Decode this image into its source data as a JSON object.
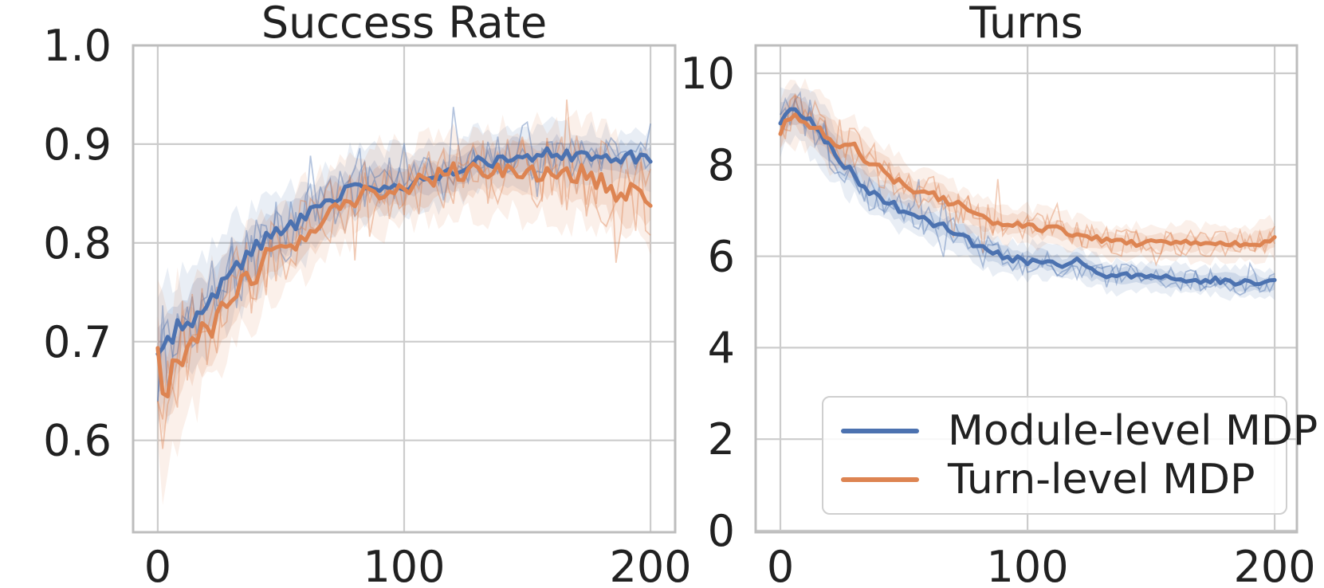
{
  "figure": {
    "background": "#ffffff",
    "text_color": "#212121",
    "grid_color": "#cccccc",
    "spine_color": "#bdbdbd"
  },
  "legend": {
    "position": "lower right of Turns panel",
    "items": [
      {
        "label": "Module-level MDP",
        "color": "#4C72B0"
      },
      {
        "label": "Turn-level MDP",
        "color": "#DD8452"
      }
    ]
  },
  "chart_data": [
    {
      "type": "line",
      "title": "Success Rate",
      "xlabel": "",
      "ylabel": "",
      "grid": true,
      "xlim": [
        -10,
        210
      ],
      "ylim": [
        0.507,
        1.0
      ],
      "xticks": [
        0,
        100,
        200
      ],
      "xtick_labels": [
        "0",
        "100",
        "200"
      ],
      "yticks": [
        0.6,
        0.7,
        0.8,
        0.9,
        1.0
      ],
      "ytick_labels": [
        "0.6",
        "0.7",
        "0.8",
        "0.9",
        "1.0"
      ],
      "x": [
        0,
        2,
        5,
        10,
        15,
        20,
        25,
        30,
        35,
        40,
        45,
        50,
        55,
        60,
        65,
        70,
        75,
        80,
        85,
        90,
        95,
        100,
        105,
        110,
        115,
        120,
        125,
        130,
        135,
        140,
        145,
        150,
        155,
        160,
        165,
        170,
        175,
        180,
        185,
        190,
        195,
        200
      ],
      "series": [
        {
          "name": "Module-level MDP",
          "color": "#4C72B0",
          "values": [
            0.68,
            0.69,
            0.703,
            0.718,
            0.726,
            0.74,
            0.756,
            0.772,
            0.78,
            0.795,
            0.806,
            0.81,
            0.82,
            0.828,
            0.834,
            0.843,
            0.85,
            0.855,
            0.864,
            0.858,
            0.861,
            0.859,
            0.863,
            0.866,
            0.864,
            0.872,
            0.878,
            0.884,
            0.882,
            0.886,
            0.888,
            0.884,
            0.889,
            0.893,
            0.889,
            0.886,
            0.889,
            0.887,
            0.884,
            0.888,
            0.886,
            0.883
          ],
          "band_halfwidth": [
            0.075,
            0.07,
            0.06,
            0.05,
            0.05,
            0.05,
            0.045,
            0.045,
            0.045,
            0.04,
            0.04,
            0.04,
            0.038,
            0.038,
            0.036,
            0.035,
            0.035,
            0.035,
            0.033,
            0.033,
            0.032,
            0.032,
            0.03,
            0.03,
            0.03,
            0.03,
            0.028,
            0.028,
            0.028,
            0.028,
            0.028,
            0.027,
            0.027,
            0.027,
            0.026,
            0.026,
            0.026,
            0.026,
            0.026,
            0.026,
            0.026,
            0.026
          ]
        },
        {
          "name": "Turn-level MDP",
          "color": "#DD8452",
          "values": [
            0.683,
            0.641,
            0.662,
            0.69,
            0.7,
            0.71,
            0.725,
            0.75,
            0.762,
            0.77,
            0.79,
            0.795,
            0.8,
            0.812,
            0.82,
            0.83,
            0.837,
            0.845,
            0.85,
            0.853,
            0.856,
            0.857,
            0.861,
            0.863,
            0.868,
            0.872,
            0.869,
            0.875,
            0.872,
            0.875,
            0.876,
            0.873,
            0.87,
            0.874,
            0.868,
            0.871,
            0.866,
            0.863,
            0.853,
            0.849,
            0.853,
            0.846
          ],
          "band_halfwidth": [
            0.09,
            0.085,
            0.075,
            0.065,
            0.06,
            0.058,
            0.055,
            0.052,
            0.05,
            0.048,
            0.046,
            0.045,
            0.044,
            0.043,
            0.042,
            0.042,
            0.04,
            0.04,
            0.04,
            0.04,
            0.04,
            0.04,
            0.04,
            0.04,
            0.04,
            0.04,
            0.04,
            0.042,
            0.042,
            0.042,
            0.044,
            0.044,
            0.045,
            0.045,
            0.046,
            0.046,
            0.048,
            0.05,
            0.05,
            0.048,
            0.048,
            0.048
          ]
        }
      ]
    },
    {
      "type": "line",
      "title": "Turns",
      "xlabel": "",
      "ylabel": "",
      "grid": true,
      "xlim": [
        -10,
        209
      ],
      "ylim": [
        -0.035,
        10.61
      ],
      "xticks": [
        0,
        100,
        200
      ],
      "xtick_labels": [
        "0",
        "100",
        "200"
      ],
      "yticks": [
        0,
        2,
        4,
        6,
        8,
        10
      ],
      "ytick_labels": [
        "0",
        "2",
        "4",
        "6",
        "8",
        "10"
      ],
      "x": [
        0,
        2,
        5,
        10,
        15,
        20,
        25,
        30,
        35,
        40,
        45,
        50,
        55,
        60,
        65,
        70,
        75,
        80,
        85,
        90,
        95,
        100,
        105,
        110,
        115,
        120,
        125,
        130,
        135,
        140,
        145,
        150,
        155,
        160,
        165,
        170,
        175,
        180,
        185,
        190,
        195,
        200
      ],
      "series": [
        {
          "name": "Module-level MDP",
          "color": "#4C72B0",
          "values": [
            9.0,
            9.15,
            9.2,
            9.05,
            8.7,
            8.35,
            8.0,
            7.8,
            7.45,
            7.3,
            7.15,
            7.0,
            6.9,
            6.75,
            6.65,
            6.55,
            6.45,
            6.2,
            6.1,
            6.0,
            5.95,
            5.88,
            5.95,
            5.85,
            5.78,
            5.88,
            5.7,
            5.6,
            5.55,
            5.58,
            5.55,
            5.6,
            5.55,
            5.5,
            5.48,
            5.45,
            5.5,
            5.45,
            5.4,
            5.45,
            5.4,
            5.42
          ],
          "band_halfwidth": [
            0.6,
            0.58,
            0.55,
            0.6,
            0.6,
            0.6,
            0.55,
            0.5,
            0.5,
            0.48,
            0.45,
            0.45,
            0.42,
            0.42,
            0.4,
            0.4,
            0.4,
            0.38,
            0.38,
            0.36,
            0.36,
            0.35,
            0.35,
            0.34,
            0.34,
            0.33,
            0.33,
            0.32,
            0.32,
            0.3,
            0.3,
            0.3,
            0.3,
            0.3,
            0.3,
            0.3,
            0.3,
            0.3,
            0.3,
            0.3,
            0.3,
            0.3
          ]
        },
        {
          "name": "Turn-level MDP",
          "color": "#DD8452",
          "values": [
            8.75,
            9.0,
            9.15,
            9.05,
            8.8,
            8.6,
            8.45,
            8.35,
            8.15,
            7.95,
            7.75,
            7.55,
            7.45,
            7.4,
            7.3,
            7.15,
            7.05,
            6.85,
            6.8,
            6.75,
            6.7,
            6.72,
            6.6,
            6.6,
            6.55,
            6.45,
            6.4,
            6.35,
            6.3,
            6.3,
            6.3,
            6.28,
            6.3,
            6.3,
            6.3,
            6.28,
            6.25,
            6.3,
            6.3,
            6.3,
            6.32,
            6.4
          ],
          "band_halfwidth": [
            0.55,
            0.58,
            0.6,
            0.65,
            0.65,
            0.6,
            0.6,
            0.55,
            0.55,
            0.52,
            0.5,
            0.5,
            0.48,
            0.45,
            0.45,
            0.42,
            0.42,
            0.4,
            0.4,
            0.4,
            0.38,
            0.38,
            0.38,
            0.36,
            0.36,
            0.36,
            0.35,
            0.35,
            0.35,
            0.35,
            0.34,
            0.34,
            0.34,
            0.34,
            0.35,
            0.35,
            0.35,
            0.35,
            0.36,
            0.36,
            0.38,
            0.4
          ]
        }
      ]
    }
  ]
}
